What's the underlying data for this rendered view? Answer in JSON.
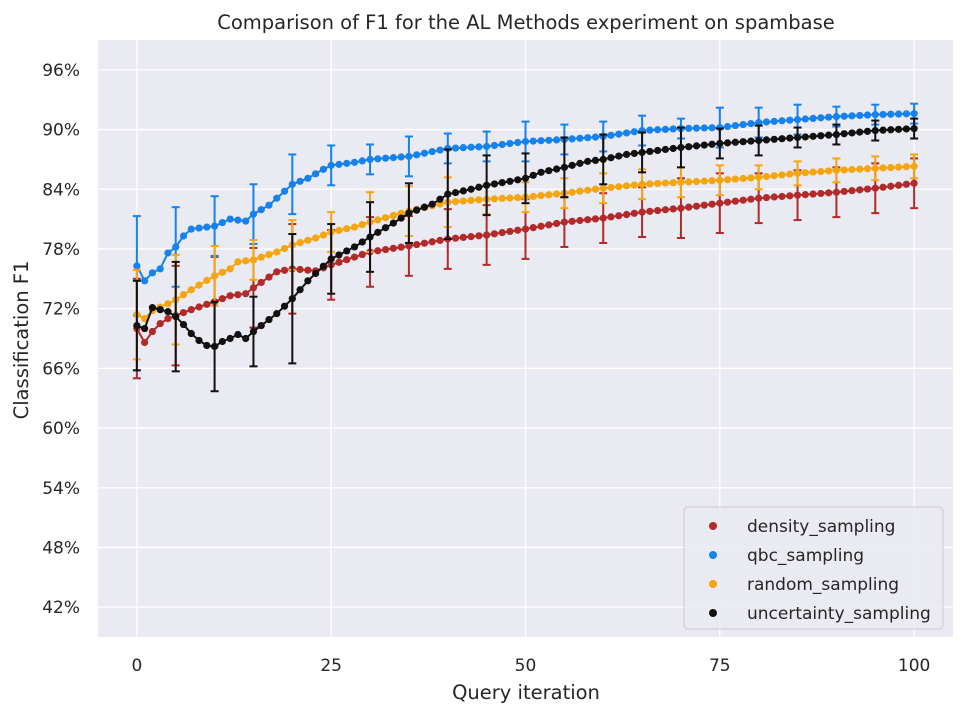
{
  "chart_data": {
    "type": "line",
    "title": "Comparison of F1 for the AL Methods experiment on spambase",
    "xlabel": "Query iteration",
    "ylabel": "Classification F1",
    "xlim": [
      -5,
      105
    ],
    "ylim": [
      0.39,
      0.99
    ],
    "xticks": [
      0,
      25,
      50,
      75,
      100
    ],
    "xtick_labels": [
      "0",
      "25",
      "50",
      "75",
      "100"
    ],
    "yticks": [
      0.42,
      0.48,
      0.54,
      0.6,
      0.66,
      0.72,
      0.78,
      0.84,
      0.9,
      0.96
    ],
    "ytick_labels": [
      "42%",
      "48%",
      "54%",
      "60%",
      "66%",
      "72%",
      "78%",
      "84%",
      "90%",
      "96%"
    ],
    "grid": true,
    "background": "#eaeaf2",
    "legend_position": "bottom-right",
    "errorbar_every": 5,
    "series": [
      {
        "name": "density_sampling",
        "color": "#b22a2a",
        "anchors": [
          [
            0,
            0.7
          ],
          [
            1,
            0.686
          ],
          [
            2,
            0.697
          ],
          [
            3,
            0.705
          ],
          [
            4,
            0.71
          ],
          [
            5,
            0.713
          ],
          [
            7,
            0.719
          ],
          [
            10,
            0.727
          ],
          [
            12,
            0.733
          ],
          [
            14,
            0.735
          ],
          [
            15,
            0.741
          ],
          [
            18,
            0.757
          ],
          [
            20,
            0.76
          ],
          [
            23,
            0.758
          ],
          [
            25,
            0.764
          ],
          [
            30,
            0.777
          ],
          [
            35,
            0.783
          ],
          [
            40,
            0.79
          ],
          [
            45,
            0.794
          ],
          [
            50,
            0.8
          ],
          [
            55,
            0.807
          ],
          [
            60,
            0.811
          ],
          [
            65,
            0.817
          ],
          [
            70,
            0.821
          ],
          [
            75,
            0.826
          ],
          [
            80,
            0.831
          ],
          [
            85,
            0.834
          ],
          [
            90,
            0.837
          ],
          [
            95,
            0.841
          ],
          [
            100,
            0.846
          ]
        ],
        "errors": [
          0.05,
          0.05,
          0.045,
          0.04,
          0.045,
          0.035,
          0.035,
          0.03,
          0.03,
          0.03,
          0.03,
          0.025,
          0.025,
          0.025,
          0.03,
          0.03,
          0.025,
          0.025,
          0.025,
          0.025,
          0.025
        ]
      },
      {
        "name": "qbc_sampling",
        "color": "#1582ee",
        "anchors": [
          [
            0,
            0.763
          ],
          [
            1,
            0.748
          ],
          [
            2,
            0.756
          ],
          [
            3,
            0.76
          ],
          [
            4,
            0.776
          ],
          [
            5,
            0.782
          ],
          [
            6,
            0.793
          ],
          [
            7,
            0.8
          ],
          [
            10,
            0.803
          ],
          [
            12,
            0.81
          ],
          [
            14,
            0.808
          ],
          [
            15,
            0.815
          ],
          [
            17,
            0.824
          ],
          [
            20,
            0.845
          ],
          [
            22,
            0.851
          ],
          [
            24,
            0.86
          ],
          [
            25,
            0.864
          ],
          [
            28,
            0.867
          ],
          [
            30,
            0.87
          ],
          [
            35,
            0.873
          ],
          [
            40,
            0.881
          ],
          [
            45,
            0.883
          ],
          [
            50,
            0.888
          ],
          [
            55,
            0.89
          ],
          [
            60,
            0.893
          ],
          [
            65,
            0.899
          ],
          [
            70,
            0.901
          ],
          [
            75,
            0.902
          ],
          [
            80,
            0.907
          ],
          [
            85,
            0.91
          ],
          [
            90,
            0.913
          ],
          [
            95,
            0.915
          ],
          [
            100,
            0.916
          ]
        ],
        "errors": [
          0.05,
          0.04,
          0.03,
          0.03,
          0.03,
          0.02,
          0.015,
          0.02,
          0.015,
          0.015,
          0.02,
          0.015,
          0.015,
          0.015,
          0.01,
          0.02,
          0.015,
          0.015,
          0.01,
          0.01,
          0.01
        ]
      },
      {
        "name": "random_sampling",
        "color": "#f5a50f",
        "anchors": [
          [
            0,
            0.714
          ],
          [
            1,
            0.71
          ],
          [
            2,
            0.718
          ],
          [
            4,
            0.725
          ],
          [
            5,
            0.729
          ],
          [
            7,
            0.739
          ],
          [
            10,
            0.753
          ],
          [
            12,
            0.76
          ],
          [
            13,
            0.767
          ],
          [
            15,
            0.769
          ],
          [
            18,
            0.777
          ],
          [
            20,
            0.784
          ],
          [
            23,
            0.791
          ],
          [
            25,
            0.797
          ],
          [
            28,
            0.802
          ],
          [
            30,
            0.807
          ],
          [
            35,
            0.818
          ],
          [
            40,
            0.827
          ],
          [
            45,
            0.83
          ],
          [
            50,
            0.832
          ],
          [
            55,
            0.836
          ],
          [
            60,
            0.841
          ],
          [
            65,
            0.845
          ],
          [
            70,
            0.847
          ],
          [
            75,
            0.849
          ],
          [
            80,
            0.852
          ],
          [
            85,
            0.856
          ],
          [
            90,
            0.859
          ],
          [
            95,
            0.861
          ],
          [
            100,
            0.863
          ]
        ],
        "errors": [
          0.045,
          0.045,
          0.03,
          0.02,
          0.025,
          0.02,
          0.03,
          0.025,
          0.025,
          0.015,
          0.015,
          0.015,
          0.015,
          0.015,
          0.015,
          0.015,
          0.012,
          0.012,
          0.012,
          0.012,
          0.012
        ]
      },
      {
        "name": "uncertainty_sampling",
        "color": "#111111",
        "anchors": [
          [
            0,
            0.703
          ],
          [
            1,
            0.7
          ],
          [
            2,
            0.721
          ],
          [
            3,
            0.719
          ],
          [
            4,
            0.717
          ],
          [
            5,
            0.712
          ],
          [
            6,
            0.704
          ],
          [
            7,
            0.695
          ],
          [
            8,
            0.688
          ],
          [
            9,
            0.683
          ],
          [
            10,
            0.682
          ],
          [
            11,
            0.687
          ],
          [
            12,
            0.69
          ],
          [
            13,
            0.694
          ],
          [
            14,
            0.69
          ],
          [
            15,
            0.697
          ],
          [
            16,
            0.703
          ],
          [
            18,
            0.715
          ],
          [
            20,
            0.73
          ],
          [
            22,
            0.748
          ],
          [
            25,
            0.77
          ],
          [
            28,
            0.782
          ],
          [
            30,
            0.792
          ],
          [
            33,
            0.806
          ],
          [
            35,
            0.816
          ],
          [
            38,
            0.825
          ],
          [
            40,
            0.835
          ],
          [
            43,
            0.84
          ],
          [
            45,
            0.844
          ],
          [
            48,
            0.848
          ],
          [
            50,
            0.851
          ],
          [
            52,
            0.857
          ],
          [
            55,
            0.862
          ],
          [
            58,
            0.868
          ],
          [
            60,
            0.87
          ],
          [
            63,
            0.875
          ],
          [
            65,
            0.877
          ],
          [
            70,
            0.882
          ],
          [
            75,
            0.886
          ],
          [
            80,
            0.889
          ],
          [
            85,
            0.892
          ],
          [
            90,
            0.895
          ],
          [
            95,
            0.899
          ],
          [
            100,
            0.901
          ]
        ],
        "errors": [
          0.045,
          0.055,
          0.045,
          0.035,
          0.065,
          0.035,
          0.035,
          0.03,
          0.045,
          0.03,
          0.025,
          0.03,
          0.025,
          0.02,
          0.02,
          0.015,
          0.015,
          0.01,
          0.01,
          0.01,
          0.01
        ]
      }
    ]
  }
}
